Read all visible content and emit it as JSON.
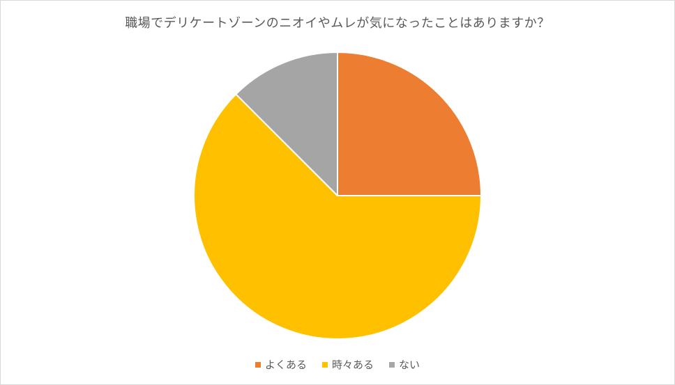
{
  "chart_data": {
    "type": "pie",
    "title": "職場でデリケートゾーンのニオイやムレが気になったことはありますか？",
    "categories": [
      "よくある",
      "時々ある",
      "ない"
    ],
    "values": [
      25,
      62.5,
      12.5
    ],
    "colors": [
      "#ED7D31",
      "#FFC000",
      "#A5A5A5"
    ],
    "start_angle_deg": 0,
    "direction": "clockwise",
    "legend_position": "bottom"
  }
}
